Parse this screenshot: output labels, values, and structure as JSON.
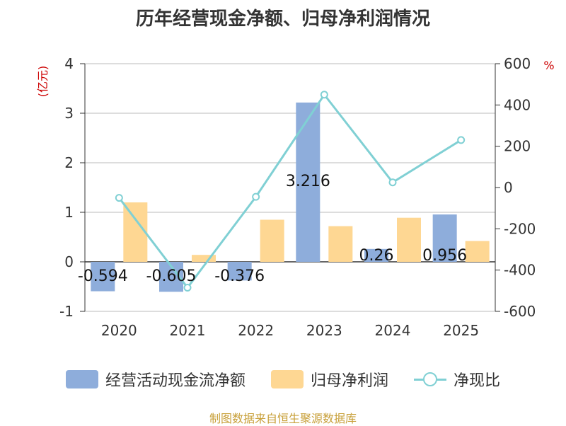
{
  "source": "制图数据来自恒生聚源数据库",
  "colors": {
    "operating_cash_flow": "#8eaddb",
    "net_profit": "#fed793",
    "ratio_line": "#80d0d4",
    "unit_label": "#cc0000",
    "axis_text": "#333333",
    "grid": "#bbbbbb"
  },
  "chart_data": {
    "type": "bar",
    "title": "历年经营现金净额、归母净利润情况",
    "categories": [
      "2020",
      "2021",
      "2022",
      "2023",
      "2024",
      "2025"
    ],
    "y_left": {
      "label": "(亿元)",
      "range": [
        -1,
        4
      ],
      "ticks": [
        "-1",
        "0",
        "1",
        "2",
        "3",
        "4"
      ]
    },
    "y_right": {
      "label": "%",
      "range": [
        -600,
        600
      ],
      "ticks": [
        "-600",
        "-400",
        "-200",
        "0",
        "200",
        "400",
        "600"
      ]
    },
    "series": [
      {
        "name": "经营活动现金流净额",
        "type": "bar",
        "axis": "left",
        "values": [
          -0.594,
          -0.605,
          -0.376,
          3.216,
          0.26,
          0.956
        ],
        "labels": [
          "-0.594",
          "-0.605",
          "-0.376",
          "3.216",
          "0.26",
          "0.956"
        ]
      },
      {
        "name": "归母净利润",
        "type": "bar",
        "axis": "left",
        "values": [
          1.2,
          0.14,
          0.85,
          0.72,
          0.89,
          0.42
        ]
      },
      {
        "name": "净现比",
        "type": "line",
        "axis": "right",
        "values": [
          -50,
          -485,
          -45,
          450,
          25,
          230
        ]
      }
    ],
    "grid": true,
    "legend": "bottom"
  }
}
